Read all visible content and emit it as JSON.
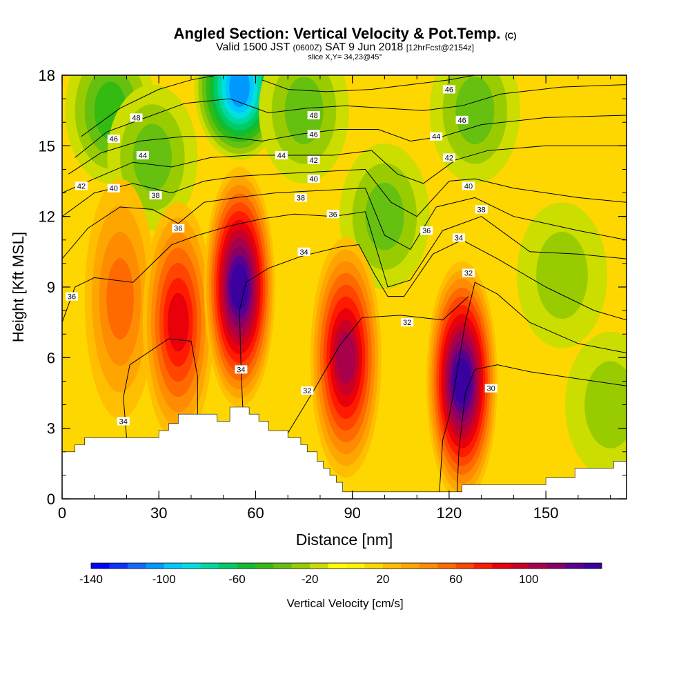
{
  "title": "Angled Section: Vertical Velocity & Pot.Temp.",
  "title_unit": "(C)",
  "subtitle_parts": [
    "Valid 1500 JST",
    "(0600Z)",
    "SAT 9 Jun 2018",
    "[12hrFcst@2154z]"
  ],
  "slice_label": "slice X,Y= 34,23@45°",
  "chart_data": {
    "type": "heatmap",
    "xlabel": "Distance [nm]",
    "ylabel": "Height [Kft MSL]",
    "xlim": [
      0,
      175
    ],
    "ylim": [
      0,
      18
    ],
    "x_ticks": [
      0,
      30,
      60,
      90,
      120,
      150
    ],
    "y_ticks": [
      0,
      3,
      6,
      9,
      12,
      15,
      18
    ],
    "colorbar": {
      "label": "Vertical Velocity [cm/s]",
      "min": -140,
      "max": 140,
      "step": 10,
      "tick_labels": [
        -140,
        -100,
        -60,
        -20,
        20,
        60,
        100
      ],
      "colors": [
        "#0000ff",
        "#0a33ff",
        "#1466ff",
        "#0099ff",
        "#00c8ff",
        "#00e0e0",
        "#00d8a0",
        "#00cc66",
        "#11bb33",
        "#33bb11",
        "#66c010",
        "#99cc00",
        "#ccdd00",
        "#ffff00",
        "#fff200",
        "#ffd700",
        "#ffbf00",
        "#ffa500",
        "#ff8c00",
        "#ff6a00",
        "#ff4500",
        "#ff1a00",
        "#e8000b",
        "#c80028",
        "#a8004a",
        "#880066",
        "#5a0090",
        "#3a00a0"
      ]
    },
    "updraft_cores": [
      {
        "x": 18,
        "y": 8.5,
        "w": 55
      },
      {
        "x": 36,
        "y": 7.5,
        "w": 85
      },
      {
        "x": 55,
        "y": 9.0,
        "w": 130
      },
      {
        "x": 88,
        "y": 6.0,
        "w": 100
      },
      {
        "x": 124,
        "y": 5.0,
        "w": 130
      }
    ],
    "downdraft_cores": [
      {
        "x": 55,
        "y": 17.5,
        "w": -110
      },
      {
        "x": 15,
        "y": 16.5,
        "w": -50
      },
      {
        "x": 28,
        "y": 14.5,
        "w": -45
      },
      {
        "x": 75,
        "y": 16.5,
        "w": -45
      },
      {
        "x": 100,
        "y": 12.0,
        "w": -40
      },
      {
        "x": 128,
        "y": 16.5,
        "w": -40
      },
      {
        "x": 155,
        "y": 9.5,
        "w": -30
      },
      {
        "x": 170,
        "y": 4.0,
        "w": -30
      }
    ],
    "terrain": [
      [
        0,
        2
      ],
      [
        4,
        2
      ],
      [
        4,
        2.3
      ],
      [
        7,
        2.3
      ],
      [
        7,
        2.6
      ],
      [
        30,
        2.6
      ],
      [
        30,
        2.9
      ],
      [
        33,
        2.9
      ],
      [
        33,
        3.2
      ],
      [
        36,
        3.2
      ],
      [
        36,
        3.6
      ],
      [
        48,
        3.6
      ],
      [
        48,
        3.3
      ],
      [
        52,
        3.3
      ],
      [
        52,
        3.9
      ],
      [
        58,
        3.9
      ],
      [
        58,
        3.6
      ],
      [
        61,
        3.6
      ],
      [
        61,
        3.3
      ],
      [
        64,
        3.3
      ],
      [
        64,
        2.9
      ],
      [
        70,
        2.9
      ],
      [
        70,
        2.6
      ],
      [
        74,
        2.6
      ],
      [
        74,
        2.3
      ],
      [
        76,
        2.3
      ],
      [
        76,
        2
      ],
      [
        79,
        2
      ],
      [
        79,
        1.6
      ],
      [
        81,
        1.6
      ],
      [
        81,
        1.3
      ],
      [
        83,
        1.3
      ],
      [
        83,
        1
      ],
      [
        85,
        1
      ],
      [
        85,
        0.7
      ],
      [
        87,
        0.7
      ],
      [
        87,
        0.3
      ],
      [
        124,
        0.3
      ],
      [
        124,
        0.6
      ],
      [
        150,
        0.6
      ],
      [
        150,
        0.9
      ],
      [
        159,
        0.9
      ],
      [
        159,
        1.3
      ],
      [
        171,
        1.3
      ],
      [
        171,
        1.6
      ],
      [
        175,
        1.6
      ]
    ],
    "theta_contours": [
      {
        "value": 30,
        "points": [
          [
            175,
            4.8
          ],
          [
            160,
            5.1
          ],
          [
            145,
            5.4
          ],
          [
            135,
            5.7
          ],
          [
            128,
            5.5
          ],
          [
            125,
            4.5
          ],
          [
            123,
            2
          ],
          [
            122.5,
            0.3
          ]
        ]
      },
      {
        "value": 32,
        "points": [
          [
            175,
            6.2
          ],
          [
            160,
            6.6
          ],
          [
            145,
            7.5
          ],
          [
            135,
            8.7
          ],
          [
            128,
            9.2
          ],
          [
            125,
            7.5
          ],
          [
            122,
            5
          ],
          [
            120,
            3.5
          ],
          [
            118,
            2.5
          ],
          [
            117,
            0.3
          ]
        ]
      },
      {
        "value": 32,
        "points": [
          [
            70,
            2.8
          ],
          [
            78,
            4.6
          ],
          [
            86,
            6.5
          ],
          [
            93,
            7.7
          ],
          [
            105,
            7.8
          ],
          [
            118,
            7.6
          ],
          [
            126,
            8.6
          ]
        ]
      },
      {
        "value": 34,
        "points": [
          [
            56,
            3.9
          ],
          [
            55.5,
            5.5
          ],
          [
            55,
            8
          ],
          [
            57,
            9.2
          ],
          [
            64,
            9.8
          ],
          [
            74,
            10.3
          ],
          [
            86,
            10.7
          ],
          [
            92,
            10.8
          ],
          [
            97,
            9.5
          ],
          [
            101,
            8.6
          ],
          [
            106,
            8.6
          ],
          [
            115,
            10.4
          ],
          [
            124,
            11
          ],
          [
            135,
            10.2
          ],
          [
            150,
            9
          ],
          [
            165,
            8
          ],
          [
            175,
            7.6
          ]
        ]
      },
      {
        "value": 34,
        "points": [
          [
            20,
            2.6
          ],
          [
            19,
            4.3
          ],
          [
            21,
            5.7
          ],
          [
            33,
            6.8
          ],
          [
            40,
            6.7
          ],
          [
            42,
            5.2
          ],
          [
            42,
            3.6
          ]
        ]
      },
      {
        "value": 36,
        "points": [
          [
            0,
            7.5
          ],
          [
            4,
            9
          ],
          [
            10,
            9.4
          ],
          [
            22,
            9.2
          ],
          [
            34,
            10.8
          ],
          [
            42,
            11.2
          ],
          [
            52,
            11.6
          ],
          [
            62,
            11.9
          ],
          [
            72,
            12.1
          ],
          [
            84,
            12
          ],
          [
            94,
            12.2
          ],
          [
            101,
            9
          ],
          [
            108,
            9.3
          ],
          [
            118,
            11.4
          ],
          [
            130,
            12
          ],
          [
            145,
            10.5
          ],
          [
            160,
            10.4
          ],
          [
            175,
            10.2
          ]
        ]
      },
      {
        "value": 38,
        "points": [
          [
            0,
            10.2
          ],
          [
            8,
            11.5
          ],
          [
            18,
            12.4
          ],
          [
            28,
            12.3
          ],
          [
            36,
            11.7
          ],
          [
            44,
            12.6
          ],
          [
            54,
            12.8
          ],
          [
            66,
            13
          ],
          [
            80,
            13.1
          ],
          [
            94,
            13.2
          ],
          [
            100,
            11.2
          ],
          [
            108,
            10.6
          ],
          [
            116,
            12.4
          ],
          [
            128,
            12.8
          ],
          [
            140,
            12
          ],
          [
            160,
            11.4
          ],
          [
            175,
            11
          ]
        ]
      },
      {
        "value": 40,
        "points": [
          [
            0,
            12
          ],
          [
            10,
            13
          ],
          [
            22,
            13.4
          ],
          [
            34,
            13
          ],
          [
            44,
            13.5
          ],
          [
            54,
            13.7
          ],
          [
            66,
            13.8
          ],
          [
            80,
            13.9
          ],
          [
            94,
            14
          ],
          [
            102,
            12.6
          ],
          [
            110,
            12
          ],
          [
            120,
            13.5
          ],
          [
            128,
            13.6
          ],
          [
            140,
            13.2
          ],
          [
            160,
            12.8
          ],
          [
            175,
            12.6
          ]
        ]
      },
      {
        "value": 42,
        "points": [
          [
            0,
            13
          ],
          [
            10,
            13.6
          ],
          [
            22,
            14.3
          ],
          [
            34,
            14.1
          ],
          [
            46,
            14.5
          ],
          [
            58,
            14.6
          ],
          [
            70,
            14.6
          ],
          [
            84,
            14.6
          ],
          [
            96,
            14.8
          ],
          [
            104,
            13.8
          ],
          [
            112,
            13.4
          ],
          [
            122,
            14.4
          ],
          [
            132,
            14.8
          ],
          [
            150,
            15
          ],
          [
            175,
            15
          ]
        ]
      },
      {
        "value": 44,
        "points": [
          [
            2,
            13.8
          ],
          [
            12,
            14.7
          ],
          [
            24,
            15.2
          ],
          [
            38,
            15.4
          ],
          [
            50,
            15.4
          ],
          [
            62,
            15.2
          ],
          [
            74,
            15.5
          ],
          [
            86,
            15.7
          ],
          [
            98,
            15.7
          ],
          [
            108,
            15.2
          ],
          [
            118,
            15.4
          ],
          [
            130,
            15.9
          ],
          [
            150,
            16.2
          ],
          [
            175,
            16.3
          ]
        ]
      },
      {
        "value": 46,
        "points": [
          [
            4,
            14.5
          ],
          [
            14,
            15.6
          ],
          [
            26,
            16.2
          ],
          [
            38,
            16.8
          ],
          [
            52,
            17
          ],
          [
            64,
            16.4
          ],
          [
            76,
            16.6
          ],
          [
            88,
            16.7
          ],
          [
            100,
            16.6
          ],
          [
            112,
            16.5
          ],
          [
            124,
            16.7
          ],
          [
            136,
            17.2
          ],
          [
            155,
            17.5
          ],
          [
            175,
            17.6
          ]
        ]
      },
      {
        "value": 48,
        "points": [
          [
            6,
            15.4
          ],
          [
            18,
            16.6
          ],
          [
            30,
            17.4
          ],
          [
            40,
            17.8
          ],
          [
            48,
            18
          ]
        ]
      },
      {
        "value": 48,
        "points": [
          [
            62,
            17.8
          ],
          [
            70,
            17.4
          ],
          [
            82,
            17.3
          ],
          [
            96,
            17.4
          ],
          [
            108,
            17.6
          ],
          [
            120,
            17.8
          ],
          [
            128,
            18
          ]
        ]
      }
    ],
    "contour_labels": [
      {
        "text": "48",
        "x": 23,
        "y": 16.2
      },
      {
        "text": "46",
        "x": 16,
        "y": 15.3
      },
      {
        "text": "44",
        "x": 25,
        "y": 14.6
      },
      {
        "text": "42",
        "x": 6,
        "y": 13.3
      },
      {
        "text": "40",
        "x": 16,
        "y": 13.2
      },
      {
        "text": "38",
        "x": 29,
        "y": 12.9
      },
      {
        "text": "36",
        "x": 36,
        "y": 11.5
      },
      {
        "text": "36",
        "x": 3,
        "y": 8.6
      },
      {
        "text": "34",
        "x": 19,
        "y": 3.3
      },
      {
        "text": "34",
        "x": 55.5,
        "y": 5.5
      },
      {
        "text": "48",
        "x": 78,
        "y": 16.3
      },
      {
        "text": "46",
        "x": 78,
        "y": 15.5
      },
      {
        "text": "44",
        "x": 68,
        "y": 14.6
      },
      {
        "text": "42",
        "x": 78,
        "y": 14.4
      },
      {
        "text": "40",
        "x": 78,
        "y": 13.6
      },
      {
        "text": "38",
        "x": 74,
        "y": 12.8
      },
      {
        "text": "36",
        "x": 84,
        "y": 12.1
      },
      {
        "text": "34",
        "x": 75,
        "y": 10.5
      },
      {
        "text": "32",
        "x": 107,
        "y": 7.5
      },
      {
        "text": "32",
        "x": 76,
        "y": 4.6
      },
      {
        "text": "46",
        "x": 120,
        "y": 17.4
      },
      {
        "text": "46",
        "x": 124,
        "y": 16.1
      },
      {
        "text": "44",
        "x": 116,
        "y": 15.4
      },
      {
        "text": "42",
        "x": 120,
        "y": 14.5
      },
      {
        "text": "40",
        "x": 126,
        "y": 13.3
      },
      {
        "text": "38",
        "x": 130,
        "y": 12.3
      },
      {
        "text": "36",
        "x": 113,
        "y": 11.4
      },
      {
        "text": "34",
        "x": 123,
        "y": 11.1
      },
      {
        "text": "32",
        "x": 126,
        "y": 9.6
      },
      {
        "text": "30",
        "x": 133,
        "y": 4.7
      }
    ]
  }
}
